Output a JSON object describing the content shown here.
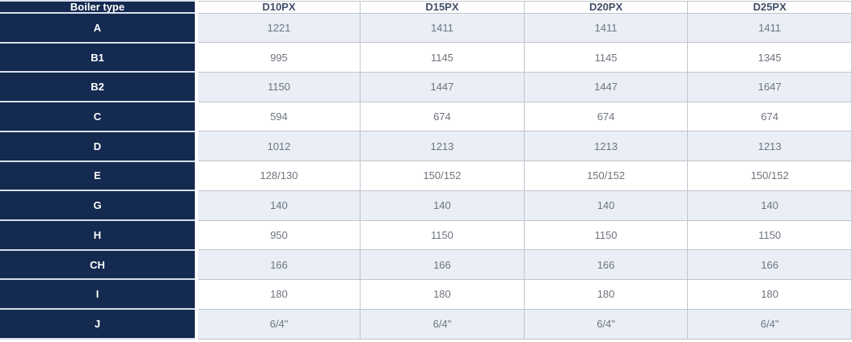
{
  "table": {
    "header": {
      "col0": "Boiler type",
      "columns": [
        "D10PX",
        "D15PX",
        "D20PX",
        "D25PX"
      ]
    },
    "rows": [
      {
        "label": "A",
        "values": [
          "1221",
          "1411",
          "1411",
          "1411"
        ]
      },
      {
        "label": "B1",
        "values": [
          "995",
          "1145",
          "1145",
          "1345"
        ]
      },
      {
        "label": "B2",
        "values": [
          "1150",
          "1447",
          "1447",
          "1647"
        ]
      },
      {
        "label": "C",
        "values": [
          "594",
          "674",
          "674",
          "674"
        ]
      },
      {
        "label": "D",
        "values": [
          "1012",
          "1213",
          "1213",
          "1213"
        ]
      },
      {
        "label": "E",
        "values": [
          "128/130",
          "150/152",
          "150/152",
          "150/152"
        ]
      },
      {
        "label": "G",
        "values": [
          "140",
          "140",
          "140",
          "140"
        ]
      },
      {
        "label": "H",
        "values": [
          "950",
          "1150",
          "1150",
          "1150"
        ]
      },
      {
        "label": "CH",
        "values": [
          "166",
          "166",
          "166",
          "166"
        ]
      },
      {
        "label": "I",
        "values": [
          "180",
          "180",
          "180",
          "180"
        ]
      },
      {
        "label": "J",
        "values": [
          "6/4\"",
          "6/4\"",
          "6/4\"",
          "6/4\""
        ]
      }
    ],
    "colors": {
      "dark_navy": "#152a50",
      "alt_row_blue": "#e9eef7",
      "row_white": "#ffffff",
      "header_text": "#414e68",
      "cell_text": "#6f757e",
      "label_text": "#ffffff",
      "grid_border": "#c2c5cc",
      "label_separator": "#d8deee"
    }
  }
}
